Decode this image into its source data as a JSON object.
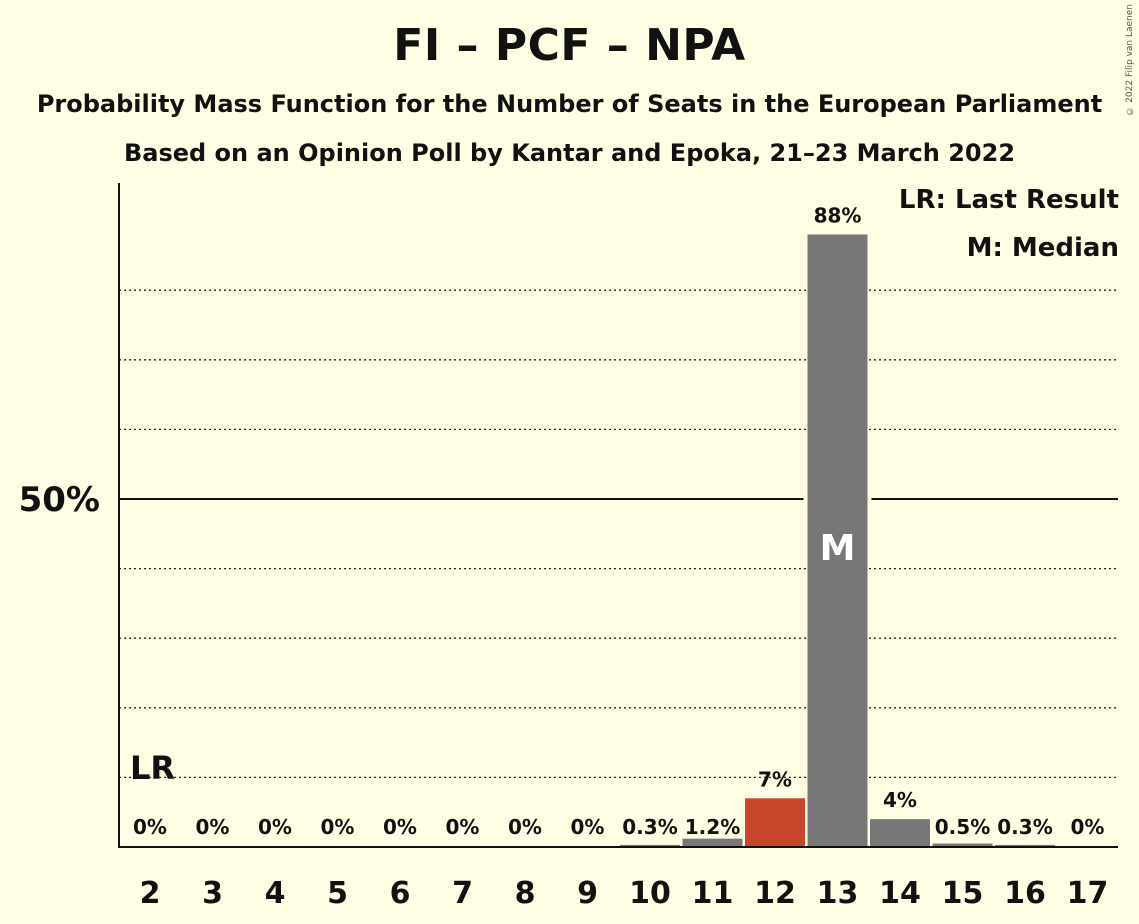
{
  "header": {
    "title": "FI – PCF – NPA",
    "subtitle": "Probability Mass Function for the Number of Seats in the European Parliament",
    "subtitle2": "Based on an Opinion Poll by Kantar and Epoka, 21–23 March 2022",
    "copyright": "© 2022 Filip van Laenen"
  },
  "legend": {
    "last_result": "LR: Last Result",
    "median": "M: Median"
  },
  "chart_data": {
    "type": "bar",
    "categories": [
      "2",
      "3",
      "4",
      "5",
      "6",
      "7",
      "8",
      "9",
      "10",
      "11",
      "12",
      "13",
      "14",
      "15",
      "16",
      "17"
    ],
    "values": [
      0,
      0,
      0,
      0,
      0,
      0,
      0,
      0,
      0.3,
      1.2,
      7,
      88,
      4,
      0.5,
      0.3,
      0
    ],
    "labels": [
      "0%",
      "0%",
      "0%",
      "0%",
      "0%",
      "0%",
      "0%",
      "0%",
      "0.3%",
      "1.2%",
      "7%",
      "88%",
      "4%",
      "0.5%",
      "0.3%",
      "0%"
    ],
    "ylim": [
      0,
      95
    ],
    "ytick_label": "50%",
    "ytick_value": 50,
    "gridlines": [
      10,
      20,
      30,
      40,
      60,
      70,
      80
    ],
    "last_result_category": "2",
    "last_result_marker": "LR",
    "median_category": "13",
    "median_marker": "M",
    "colors": {
      "default": "#777777",
      "last_result": "#C8472A",
      "last_result_bar": "12",
      "background": "#FFFDE3"
    }
  }
}
